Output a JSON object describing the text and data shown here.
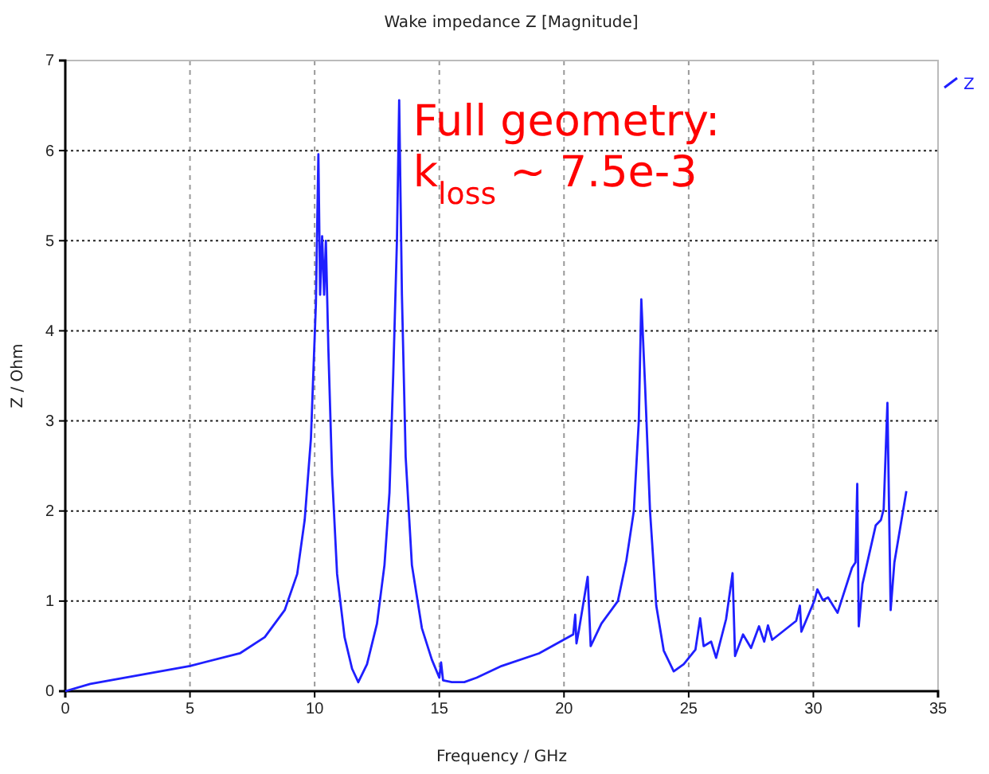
{
  "chart_data": {
    "type": "line",
    "title": "Wake impedance Z [Magnitude]",
    "xlabel": "Frequency / GHz",
    "ylabel": "Z / Ohm",
    "annotations": [
      "Full geometry:",
      "k$_{loss}$ ~ 7.5e-3"
    ],
    "xlim": [
      0,
      35
    ],
    "xticks": [
      0,
      5,
      10,
      15,
      20,
      25,
      30,
      35
    ],
    "ylim": [
      0,
      7
    ],
    "yticks": [
      0,
      1,
      2,
      3,
      4,
      5,
      6,
      7
    ],
    "grid": true,
    "legend": "top right",
    "marker": "none",
    "line_style": "solid",
    "series": [
      {
        "name": "Z",
        "color": "#1f1fff",
        "x": [
          0,
          1,
          3,
          5,
          7,
          8,
          8.8,
          9.3,
          9.6,
          9.85,
          10.05,
          10.15,
          10.22,
          10.3,
          10.38,
          10.45,
          10.55,
          10.7,
          10.9,
          11.2,
          11.5,
          11.75,
          12.1,
          12.5,
          12.8,
          13.0,
          13.15,
          13.3,
          13.39,
          13.5,
          13.65,
          13.9,
          14.3,
          14.7,
          15.0,
          15.07,
          15.15,
          15.5,
          16.0,
          16.5,
          17.5,
          19,
          20.37,
          20.45,
          20.5,
          20.6,
          20.95,
          21.07,
          21.5,
          22.16,
          22.5,
          22.8,
          23.0,
          23.1,
          23.25,
          23.45,
          23.7,
          24.0,
          24.4,
          24.8,
          25.27,
          25.46,
          25.6,
          25.9,
          26.1,
          26.5,
          26.76,
          26.86,
          27.18,
          27.5,
          27.82,
          28.03,
          28.18,
          28.35,
          29.31,
          29.46,
          29.52,
          30.05,
          30.16,
          30.38,
          30.59,
          30.97,
          31.55,
          31.69,
          31.76,
          31.82,
          31.97,
          32.5,
          32.71,
          32.82,
          32.97,
          33.1,
          33.25,
          33.73
        ],
        "values": [
          0,
          0.08,
          0.18,
          0.28,
          0.42,
          0.6,
          0.9,
          1.3,
          1.9,
          2.8,
          4.3,
          5.96,
          4.4,
          5.05,
          4.4,
          5.0,
          3.8,
          2.4,
          1.3,
          0.6,
          0.25,
          0.1,
          0.3,
          0.75,
          1.4,
          2.2,
          3.5,
          5.0,
          6.56,
          4.4,
          2.6,
          1.4,
          0.7,
          0.35,
          0.15,
          0.32,
          0.12,
          0.1,
          0.1,
          0.15,
          0.28,
          0.42,
          0.63,
          0.85,
          0.53,
          0.68,
          1.27,
          0.5,
          0.75,
          1.0,
          1.45,
          2.0,
          3.0,
          4.35,
          3.4,
          2.0,
          0.95,
          0.45,
          0.22,
          0.3,
          0.46,
          0.81,
          0.5,
          0.55,
          0.37,
          0.8,
          1.31,
          0.39,
          0.63,
          0.48,
          0.72,
          0.55,
          0.73,
          0.57,
          0.78,
          0.95,
          0.66,
          1.01,
          1.13,
          1.01,
          1.04,
          0.87,
          1.37,
          1.43,
          2.3,
          0.72,
          1.19,
          1.84,
          1.9,
          2.02,
          3.2,
          0.9,
          1.43,
          2.22
        ]
      }
    ]
  }
}
